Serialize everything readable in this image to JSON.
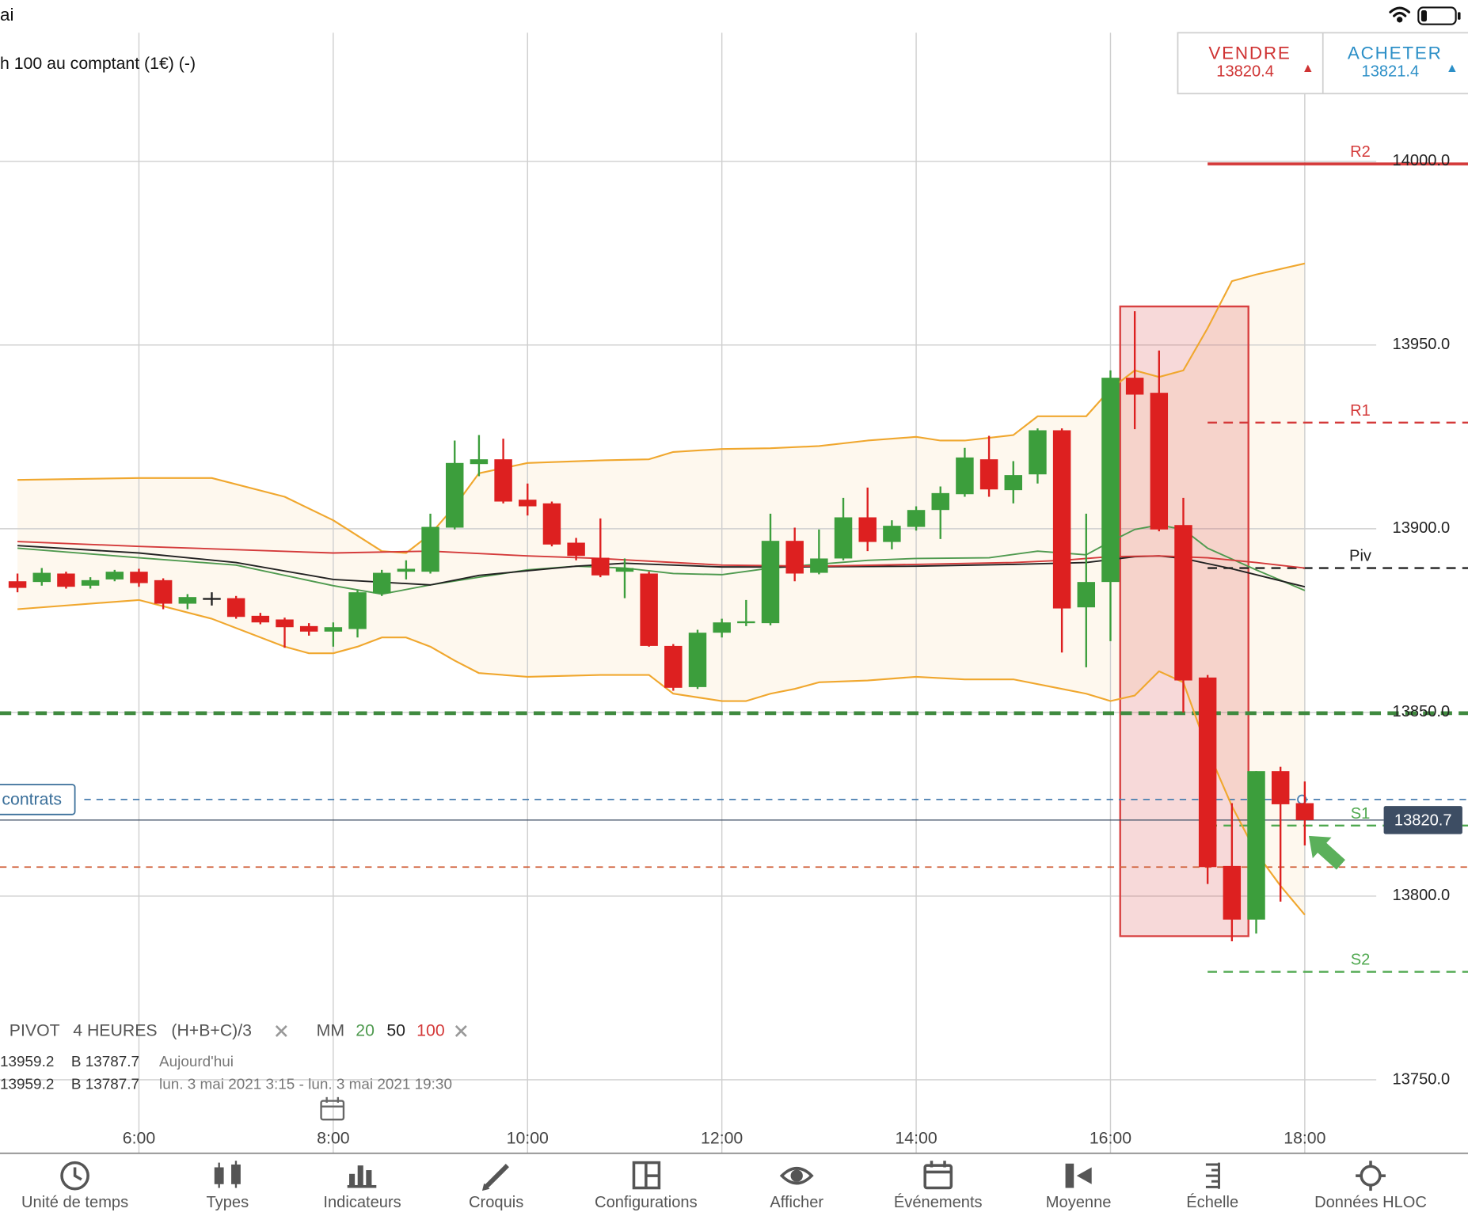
{
  "status_bar": {
    "text": "ai"
  },
  "instrument": "h 100 au comptant (1€) (-)",
  "quote": {
    "sell": {
      "label": "VENDRE",
      "price": "13820.4"
    },
    "buy": {
      "label": "ACHETER",
      "price": "13821.4"
    }
  },
  "chart_data": {
    "type": "candlestick",
    "x": [
      4.75,
      5,
      5.25,
      5.5,
      5.75,
      6,
      6.25,
      6.5,
      6.75,
      7,
      7.25,
      7.5,
      7.75,
      8,
      8.25,
      8.5,
      8.75,
      9,
      9.25,
      9.5,
      9.75,
      10,
      10.25,
      10.5,
      10.75,
      11,
      11.25,
      11.5,
      11.75,
      12,
      12.25,
      12.5,
      12.75,
      13,
      13.25,
      13.5,
      13.75,
      14,
      14.25,
      14.5,
      14.75,
      15,
      15.25,
      15.5,
      15.75,
      16,
      16.25,
      16.5,
      16.75,
      17,
      17.25,
      17.5,
      17.75,
      18
    ],
    "open": [
      13885.7,
      13885.5,
      13887.8,
      13884.5,
      13886.2,
      13888.3,
      13886.0,
      13879.6,
      13880.9,
      13881.1,
      13876.3,
      13875.3,
      13873.5,
      13872.0,
      13872.7,
      13882.4,
      13888.3,
      13888.3,
      13900.3,
      13917.6,
      13918.9,
      13907.9,
      13906.9,
      13896.2,
      13892.1,
      13888.3,
      13887.8,
      13868.1,
      13856.9,
      13871.7,
      13874.3,
      13874.3,
      13896.7,
      13888.0,
      13891.9,
      13903.1,
      13896.4,
      13900.5,
      13905.1,
      13909.4,
      13918.9,
      13910.5,
      13914.8,
      13926.8,
      13878.6,
      13885.5,
      13941.1,
      13937.0,
      13901.0,
      13859.5,
      13808.2,
      13793.6,
      13834.0,
      13825.3
    ],
    "high": [
      13887.8,
      13889.3,
      13888.3,
      13886.8,
      13888.8,
      13889.1,
      13886.5,
      13882.2,
      13882.7,
      13881.7,
      13877.1,
      13875.8,
      13874.3,
      13874.5,
      13883.2,
      13888.8,
      13891.4,
      13904.1,
      13924.0,
      13925.5,
      13924.5,
      13912.3,
      13907.4,
      13897.5,
      13902.8,
      13891.9,
      13888.3,
      13868.6,
      13872.5,
      13875.5,
      13880.6,
      13904.1,
      13900.3,
      13899.8,
      13908.4,
      13911.2,
      13902.3,
      13906.1,
      13911.5,
      13922.0,
      13925.3,
      13918.4,
      13927.3,
      13927.3,
      13904.1,
      13943.1,
      13959.2,
      13948.5,
      13908.4,
      13860.2,
      13825.3,
      13834.0,
      13835.2,
      13831.2
    ],
    "low": [
      13882.7,
      13884.5,
      13883.7,
      13883.7,
      13885.7,
      13884.2,
      13878.1,
      13878.1,
      13879.1,
      13875.5,
      13874.0,
      13867.6,
      13870.9,
      13867.9,
      13870.4,
      13881.7,
      13886.2,
      13887.8,
      13899.8,
      13914.3,
      13906.9,
      13903.6,
      13895.2,
      13891.4,
      13886.8,
      13881.1,
      13867.9,
      13855.9,
      13856.4,
      13870.4,
      13873.5,
      13873.7,
      13885.7,
      13887.6,
      13891.4,
      13893.9,
      13894.4,
      13899.5,
      13897.2,
      13908.7,
      13908.7,
      13906.9,
      13912.3,
      13866.3,
      13862.3,
      13869.4,
      13927.1,
      13899.3,
      13850.0,
      13803.3,
      13787.7,
      13789.8,
      13798.5,
      13813.8
    ],
    "close": [
      13883.9,
      13888.0,
      13884.2,
      13886.0,
      13888.3,
      13885.2,
      13879.6,
      13881.4,
      13880.9,
      13876.0,
      13874.5,
      13873.2,
      13872.0,
      13873.2,
      13882.7,
      13888.0,
      13889.1,
      13900.5,
      13917.9,
      13918.9,
      13907.4,
      13906.1,
      13895.7,
      13892.6,
      13887.3,
      13889.3,
      13868.1,
      13856.7,
      13871.7,
      13874.5,
      13874.8,
      13896.7,
      13887.8,
      13891.9,
      13903.1,
      13896.4,
      13900.8,
      13905.1,
      13909.7,
      13919.4,
      13910.7,
      13914.6,
      13926.8,
      13878.3,
      13885.5,
      13941.1,
      13936.5,
      13899.8,
      13858.7,
      13807.9,
      13793.6,
      13834.0,
      13825.0,
      13820.7
    ],
    "up_color": "#3c9e3c",
    "down_color": "#dd2020",
    "doji_color": "#222222",
    "xlim": [
      4.57,
      19.68
    ],
    "ylim": [
      13730,
      14035
    ],
    "xticks": [
      {
        "value": 6,
        "label": "6:00"
      },
      {
        "value": 8,
        "label": "8:00"
      },
      {
        "value": 10,
        "label": "10:00"
      },
      {
        "value": 12,
        "label": "12:00"
      },
      {
        "value": 14,
        "label": "14:00"
      },
      {
        "value": 16,
        "label": "16:00"
      },
      {
        "value": 18,
        "label": "18:00"
      }
    ],
    "yticks": [
      {
        "value": 13750,
        "label": "13750.0"
      },
      {
        "value": 13800,
        "label": "13800.0"
      },
      {
        "value": 13850,
        "label": "13850.0"
      },
      {
        "value": 13900,
        "label": "13900.0"
      },
      {
        "value": 13950,
        "label": "13950.0"
      },
      {
        "value": 14000,
        "label": "14000.0"
      }
    ],
    "grid": true,
    "bands": {
      "color": "#f0a72e",
      "fill": "#fef8ee",
      "upper": {
        "x": [
          4.75,
          6,
          6.75,
          7.5,
          8,
          8.5,
          8.75,
          9,
          9.25,
          9.5,
          10,
          10.75,
          11.25,
          11.5,
          12,
          12.5,
          13,
          13.5,
          14,
          14.25,
          14.5,
          15,
          15.25,
          15.75,
          16,
          16.25,
          16.5,
          16.75,
          17,
          17.25,
          17.5,
          18
        ],
        "values": [
          13913.3,
          13913.8,
          13913.8,
          13908.7,
          13902.3,
          13893.9,
          13893.4,
          13898.5,
          13906.1,
          13915.1,
          13917.9,
          13918.6,
          13918.9,
          13920.9,
          13921.7,
          13921.9,
          13922.5,
          13924.0,
          13925.0,
          13924.0,
          13924.0,
          13925.5,
          13930.6,
          13930.6,
          13938.0,
          13943.1,
          13941.3,
          13943.1,
          13954.6,
          13967.4,
          13969.2,
          13972.2
        ]
      },
      "lower": {
        "x": [
          4.75,
          6,
          6.75,
          7.5,
          7.75,
          8,
          8.25,
          8.5,
          8.75,
          9,
          9.25,
          9.5,
          10,
          10.75,
          11.25,
          11.5,
          12,
          12.25,
          12.5,
          12.75,
          13,
          13.5,
          14,
          14.5,
          15,
          15.5,
          15.75,
          16,
          16.25,
          16.5,
          16.75,
          17,
          17.25,
          17.5,
          17.75,
          18
        ],
        "values": [
          13878.1,
          13880.6,
          13875.5,
          13867.9,
          13866.1,
          13866.1,
          13867.9,
          13870.4,
          13870.4,
          13867.9,
          13864.1,
          13860.7,
          13859.7,
          13860.2,
          13860.2,
          13855.1,
          13853.1,
          13853.1,
          13855.1,
          13856.4,
          13858.2,
          13858.7,
          13859.7,
          13859.0,
          13859.0,
          13856.4,
          13855.1,
          13853.1,
          13854.6,
          13861.2,
          13858.2,
          13839.8,
          13824.5,
          13811.8,
          13802.8,
          13794.9
        ]
      }
    },
    "series": [
      {
        "name": "20",
        "color": "#4f9a4f",
        "x": [
          4.75,
          6,
          7,
          8,
          8.5,
          9,
          9.5,
          10,
          10.5,
          11,
          11.5,
          12,
          12.5,
          13.5,
          14,
          14.75,
          15.25,
          15.75,
          16,
          16.25,
          16.5,
          16.75,
          17,
          17.5,
          18
        ],
        "values": [
          13894.7,
          13892.1,
          13890.1,
          13884.5,
          13882.2,
          13884.7,
          13886.8,
          13888.8,
          13889.8,
          13889.3,
          13887.8,
          13887.5,
          13889.3,
          13891.4,
          13891.9,
          13892.1,
          13893.9,
          13892.9,
          13896.5,
          13899.8,
          13901.0,
          13899.8,
          13894.7,
          13888.8,
          13883.2
        ]
      },
      {
        "name": "50",
        "color": "#222222",
        "x": [
          4.75,
          6,
          7,
          8,
          9,
          9.5,
          10.5,
          11,
          12,
          12.75,
          14,
          15,
          15.75,
          16.25,
          16.5,
          16.75,
          17.25,
          18
        ],
        "values": [
          13895.4,
          13893.4,
          13890.8,
          13886.2,
          13884.7,
          13887.3,
          13889.8,
          13890.6,
          13889.6,
          13889.6,
          13889.8,
          13890.3,
          13890.8,
          13892.4,
          13892.6,
          13891.9,
          13889.1,
          13884.2
        ]
      },
      {
        "name": "100",
        "color": "#d43a3a",
        "x": [
          4.75,
          6,
          8,
          9,
          10,
          10.75,
          12,
          13,
          14,
          15,
          15.5,
          16,
          16.5,
          17,
          17.5,
          18
        ],
        "values": [
          13896.5,
          13895.2,
          13893.4,
          13893.9,
          13892.6,
          13891.9,
          13890.1,
          13889.8,
          13890.3,
          13890.8,
          13891.4,
          13892.4,
          13892.6,
          13892.1,
          13890.8,
          13889.3
        ]
      }
    ],
    "levels": [
      {
        "name": "R2",
        "value": 13999.3,
        "color": "#d43a3a",
        "style": "solid",
        "from": 17
      },
      {
        "name": "R1",
        "value": 13928.9,
        "color": "#d43a3a",
        "style": "dashed",
        "from": 17
      },
      {
        "name": "Piv",
        "value": 13889.3,
        "color": "#222222",
        "style": "dashed",
        "from": 17
      },
      {
        "name": "S1",
        "value": 13819.2,
        "color": "#4fa84f",
        "style": "dashed",
        "from": 17
      },
      {
        "name": "S2",
        "value": 13779.4,
        "color": "#4fa84f",
        "style": "dashed",
        "from": 17
      }
    ],
    "order_lines": [
      {
        "value": 13849.8,
        "color": "#3f8a3f",
        "style": "dashed"
      },
      {
        "value": 13826.3,
        "color": "#4a7fb0",
        "style": "dashed",
        "label": "contrats"
      },
      {
        "value": 13807.9,
        "color": "#d0603a",
        "style": "dashed"
      }
    ],
    "last_price": 13820.7,
    "highlight": {
      "x": [
        16.1,
        17.42
      ],
      "y": [
        13789.1,
        13960.5
      ],
      "color": "#d84040"
    }
  },
  "legend": {
    "pivot": "PIVOT",
    "period": "4 HEURES",
    "formula": "(H+B+C)/3",
    "ma": "MM",
    "rows": [
      [
        "13959.2",
        "B 13787.7",
        "Aujourd'hui"
      ],
      [
        "13959.2",
        "B 13787.7",
        "lun. 3 mai 2021 3:15 - lun. 3 mai 2021 19:30"
      ]
    ]
  },
  "toolbar": [
    "Unité de temps",
    "Types",
    "Indicateurs",
    "Croquis",
    "Configurations",
    "Afficher",
    "Événements",
    "Moyenne",
    "Échelle",
    "Données HLOC"
  ]
}
